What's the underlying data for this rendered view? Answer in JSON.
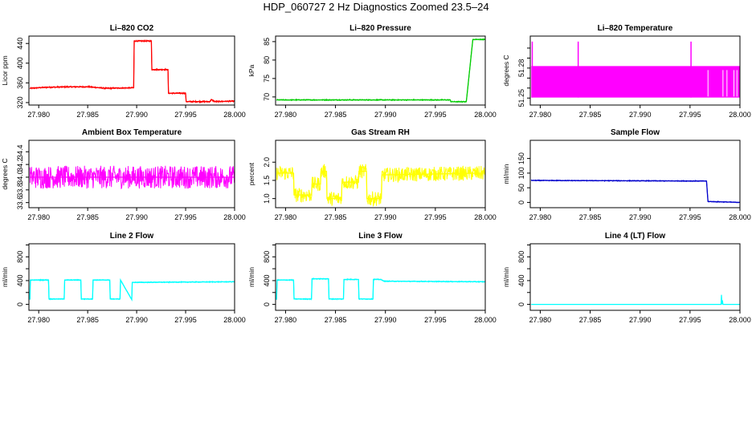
{
  "figure": {
    "title": "HDP_060727  2 Hz Diagnostics Zoomed 23.5–24"
  },
  "chart_data": [
    {
      "type": "line",
      "title": "Li–820 CO2",
      "ylabel": "Licor ppm",
      "xlim": [
        27.979,
        28.0
      ],
      "ylim": [
        315,
        455
      ],
      "xticks": [
        "27.980",
        "27.985",
        "27.990",
        "27.995",
        "28.000"
      ],
      "xtick_values": [
        27.98,
        27.985,
        27.99,
        27.995,
        28.0
      ],
      "yticks": [
        "320",
        "360",
        "400",
        "440"
      ],
      "ytick_values": [
        320,
        360,
        400,
        440
      ],
      "color": "#ff0000",
      "noise": 1.5,
      "series": [
        {
          "x": [
            27.9791,
            27.9808,
            27.983,
            27.9851,
            27.9868,
            27.9897,
            27.98975,
            27.9915,
            27.99155,
            27.9932,
            27.99325,
            27.995,
            27.99505,
            27.9975,
            27.9976,
            27.998,
            28.0
          ],
          "y": [
            349,
            351,
            352,
            352,
            349,
            350,
            445,
            445,
            387,
            387,
            339,
            339,
            322,
            322,
            326,
            322,
            323
          ]
        }
      ]
    },
    {
      "type": "line",
      "title": "Li–820 Pressure",
      "ylabel": "kPa",
      "xlim": [
        27.979,
        28.0
      ],
      "ylim": [
        67.8,
        86.5
      ],
      "xticks": [
        "27.980",
        "27.985",
        "27.990",
        "27.995",
        "28.000"
      ],
      "xtick_values": [
        27.98,
        27.985,
        27.99,
        27.995,
        28.0
      ],
      "yticks": [
        "70",
        "75",
        "80",
        "85"
      ],
      "ytick_values": [
        70,
        75,
        80,
        85
      ],
      "color": "#00cc00",
      "noise": 0.15,
      "series": [
        {
          "x": [
            27.9791,
            27.9965,
            27.99655,
            27.9981,
            27.99875,
            27.99895,
            28.0
          ],
          "y": [
            69.2,
            69.2,
            68.7,
            68.7,
            85.5,
            85.6,
            85.6
          ]
        }
      ]
    },
    {
      "type": "line",
      "title": "Li–820 Temperature",
      "ylabel": "degrees C",
      "xlim": [
        27.979,
        28.0
      ],
      "ylim": [
        51.243,
        51.312
      ],
      "xticks": [
        "27.980",
        "27.985",
        "27.990",
        "27.995",
        "28.000"
      ],
      "xtick_values": [
        27.98,
        27.985,
        27.99,
        27.995,
        28.0
      ],
      "yticks": [
        "51.25",
        "51.28"
      ],
      "ytick_values": [
        51.25,
        51.28
      ],
      "yticks_extra": [
        51.26,
        51.27,
        51.29,
        51.3
      ],
      "color": "#ff00ff",
      "band": {
        "x0": 27.9791,
        "x1": 28.0,
        "low": 51.2505,
        "high": 51.282
      },
      "spikes": [
        {
          "x": 27.9792,
          "y0": 51.2505,
          "y1": 51.3065
        },
        {
          "x": 27.9838,
          "y0": 51.2505,
          "y1": 51.3065
        },
        {
          "x": 27.9951,
          "y0": 51.2505,
          "y1": 51.3065
        }
      ],
      "series": [
        {
          "x": [
            27.9791,
            28.0
          ],
          "y": [
            51.25,
            51.282
          ]
        }
      ]
    },
    {
      "type": "line",
      "title": "Ambient Box Temperature",
      "ylabel": "degrees C",
      "xlim": [
        27.979,
        28.0
      ],
      "ylim": [
        33.52,
        34.58
      ],
      "xticks": [
        "27.980",
        "27.985",
        "27.990",
        "27.995",
        "28.000"
      ],
      "xtick_values": [
        27.98,
        27.985,
        27.99,
        27.995,
        28.0
      ],
      "yticks": [
        "33.6",
        "33.8",
        "34.0",
        "34.2",
        "34.4"
      ],
      "ytick_values": [
        33.6,
        33.8,
        34.0,
        34.2,
        34.4
      ],
      "color": "#ff00ff",
      "noise": 0.18,
      "series": [
        {
          "x": [
            27.9791,
            28.0
          ],
          "y": [
            34.0,
            34.0
          ]
        }
      ]
    },
    {
      "type": "line",
      "title": "Gas Stream RH",
      "ylabel": "percent",
      "xlim": [
        27.979,
        28.0
      ],
      "ylim": [
        0.75,
        2.6
      ],
      "xticks": [
        "27.980",
        "27.985",
        "27.990",
        "27.995",
        "28.000"
      ],
      "xtick_values": [
        27.98,
        27.985,
        27.99,
        27.995,
        28.0
      ],
      "yticks": [
        "1.0",
        "1.5",
        "2.0"
      ],
      "ytick_values": [
        1.0,
        1.5,
        2.0
      ],
      "color": "#ffff00",
      "noise": 0.2,
      "series": [
        {
          "x": [
            27.9791,
            27.9808,
            27.98085,
            27.9826,
            27.98265,
            27.9835,
            27.98355,
            27.9841,
            27.98415,
            27.9856,
            27.98565,
            27.9873,
            27.98735,
            27.9881,
            27.98815,
            27.9896,
            27.98965,
            28.0
          ],
          "y": [
            1.7,
            1.7,
            1.1,
            1.1,
            1.4,
            1.4,
            1.75,
            1.75,
            1.0,
            1.0,
            1.45,
            1.45,
            1.75,
            1.75,
            1.0,
            1.0,
            1.65,
            1.7
          ]
        }
      ]
    },
    {
      "type": "line",
      "title": "Sample Flow",
      "ylabel": "ml/min",
      "xlim": [
        27.979,
        28.0
      ],
      "ylim": [
        -18,
        212
      ],
      "xticks": [
        "27.980",
        "27.985",
        "27.990",
        "27.995",
        "28.000"
      ],
      "xtick_values": [
        27.98,
        27.985,
        27.99,
        27.995,
        28.0
      ],
      "yticks": [
        "0",
        "50",
        "100",
        "150"
      ],
      "ytick_values": [
        0,
        50,
        100,
        150
      ],
      "color": "#0000cc",
      "noise": 1.5,
      "series": [
        {
          "x": [
            27.9791,
            27.9965,
            27.99665,
            27.9968,
            28.0
          ],
          "y": [
            75,
            73,
            73,
            3,
            0
          ]
        }
      ]
    },
    {
      "type": "line",
      "title": "Line 2 Flow",
      "ylabel": "ml/min",
      "xlim": [
        27.979,
        28.0
      ],
      "ylim": [
        -100,
        1020
      ],
      "xticks": [
        "27.980",
        "27.985",
        "27.990",
        "27.995",
        "28.000"
      ],
      "xtick_values": [
        27.98,
        27.985,
        27.99,
        27.995,
        28.0
      ],
      "yticks": [
        "0",
        "400",
        "800"
      ],
      "ytick_values": [
        0,
        400,
        800
      ],
      "ytick_minor": [
        200,
        600,
        1000
      ],
      "color": "#00ffff",
      "noise": 8,
      "series": [
        {
          "x": [
            27.9791,
            27.97915,
            27.981,
            27.98105,
            27.9826,
            27.98265,
            27.9843,
            27.98435,
            27.9855,
            27.98555,
            27.98725,
            27.9873,
            27.9883,
            27.98835,
            27.9895,
            27.98955,
            28.0
          ],
          "y": [
            80,
            410,
            410,
            90,
            90,
            410,
            410,
            90,
            90,
            410,
            410,
            90,
            90,
            410,
            80,
            370,
            380
          ]
        }
      ]
    },
    {
      "type": "line",
      "title": "Line 3 Flow",
      "ylabel": "ml/min",
      "xlim": [
        27.979,
        28.0
      ],
      "ylim": [
        -100,
        1020
      ],
      "xticks": [
        "27.980",
        "27.985",
        "27.990",
        "27.995",
        "28.000"
      ],
      "xtick_values": [
        27.98,
        27.985,
        27.99,
        27.995,
        28.0
      ],
      "yticks": [
        "0",
        "400",
        "800"
      ],
      "ytick_values": [
        0,
        400,
        800
      ],
      "ytick_minor": [
        200,
        600,
        1000
      ],
      "color": "#00ffff",
      "noise": 8,
      "series": [
        {
          "x": [
            27.9791,
            27.97915,
            27.9808,
            27.98085,
            27.9826,
            27.98265,
            27.9843,
            27.98435,
            27.9858,
            27.98585,
            27.9873,
            27.98735,
            27.98875,
            27.9888,
            27.9895,
            27.9899,
            28.0
          ],
          "y": [
            80,
            410,
            410,
            90,
            90,
            430,
            430,
            90,
            90,
            420,
            420,
            90,
            90,
            420,
            420,
            390,
            380
          ]
        }
      ]
    },
    {
      "type": "line",
      "title": "Line 4 (LT) Flow",
      "ylabel": "ml/min",
      "xlim": [
        27.979,
        28.0
      ],
      "ylim": [
        -100,
        1020
      ],
      "xticks": [
        "27.980",
        "27.985",
        "27.990",
        "27.995",
        "28.000"
      ],
      "xtick_values": [
        27.98,
        27.985,
        27.99,
        27.995,
        28.0
      ],
      "yticks": [
        "0",
        "400",
        "800"
      ],
      "ytick_values": [
        0,
        400,
        800
      ],
      "ytick_minor": [
        200,
        600,
        1000
      ],
      "color": "#00ffff",
      "noise": 0,
      "series": [
        {
          "x": [
            27.9791,
            27.9981,
            27.99815,
            27.9982,
            27.99825,
            27.9983,
            28.0
          ],
          "y": [
            0,
            0,
            160,
            0,
            70,
            0,
            0
          ]
        }
      ]
    }
  ]
}
